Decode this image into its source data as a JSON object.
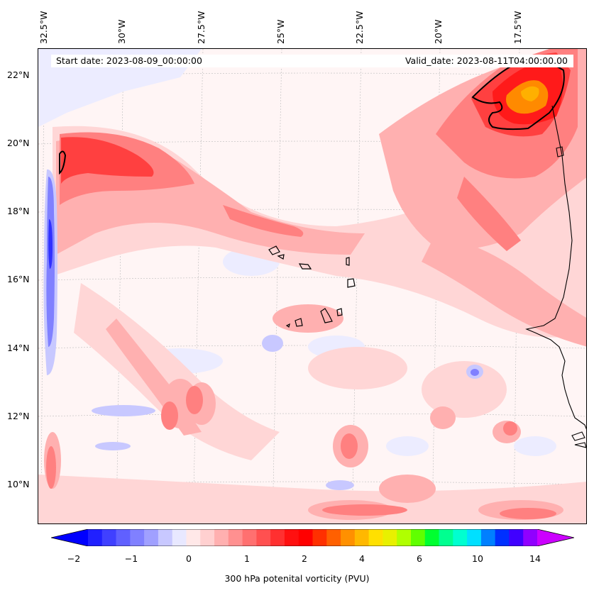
{
  "header": {
    "start_date": "Start date: 2023-08-09_00:00:00",
    "valid_date": "Valid_date: 2023-08-11T04:00:00.00"
  },
  "map": {
    "lon_labels": [
      "32.5°W",
      "30°W",
      "27.5°W",
      "25°W",
      "22.5°W",
      "20°W",
      "17.5°W"
    ],
    "lat_labels": [
      "22°N",
      "20°N",
      "18°N",
      "16°N",
      "14°N",
      "12°N",
      "10°N"
    ],
    "field_colors": {
      "background": "#fff5f5",
      "light_pink": "#ffd6d6",
      "pink": "#ffb0b0",
      "salmon": "#ff8080",
      "red": "#ff4040",
      "strong_red": "#ff1a1a",
      "orange": "#ff8a00",
      "yellow_orange": "#ffb000",
      "pale_blue": "#e8e8ff",
      "light_blue": "#c8c8ff",
      "blue": "#8080ff",
      "deep_blue": "#3030ff"
    }
  },
  "colorbar": {
    "label": "300 hPa potenital vorticity (PVU)",
    "ticks": [
      "−2",
      "−1",
      "0",
      "1",
      "2",
      "4",
      "6",
      "10",
      "14"
    ],
    "colors": [
      "#0000ff",
      "#2020ff",
      "#4040ff",
      "#6060ff",
      "#8080ff",
      "#a0a0ff",
      "#c8c8ff",
      "#e8e8ff",
      "#ffe8e8",
      "#ffd0d0",
      "#ffb0b0",
      "#ff9090",
      "#ff7070",
      "#ff5050",
      "#ff3030",
      "#ff1010",
      "#ff0000",
      "#ff3000",
      "#ff6000",
      "#ff9000",
      "#ffb800",
      "#ffe000",
      "#e8f000",
      "#b0ff00",
      "#60ff00",
      "#00ff30",
      "#00ff90",
      "#00ffd0",
      "#00e0ff",
      "#0080ff",
      "#0030ff",
      "#4000ff",
      "#9000ff",
      "#cc00ff"
    ]
  }
}
